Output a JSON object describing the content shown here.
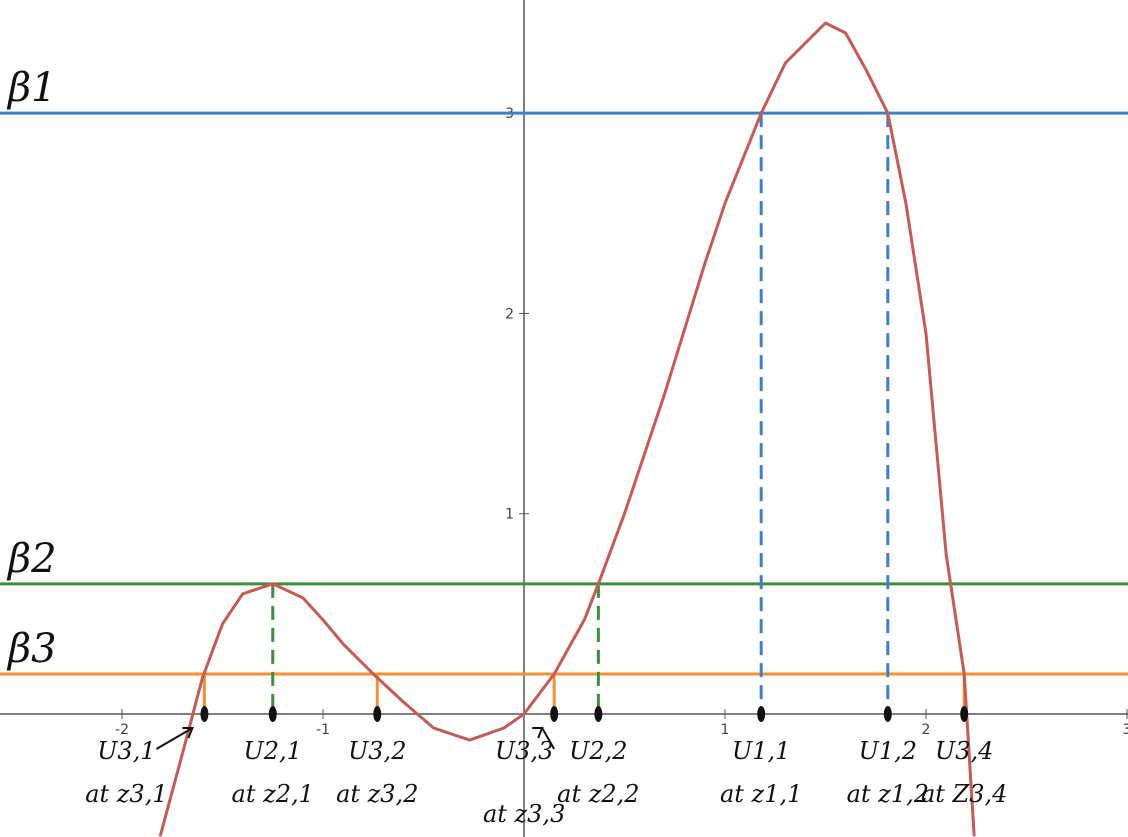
{
  "chart_data": {
    "type": "line",
    "xlim": [
      -2.607,
      3.005
    ],
    "ylim": [
      -0.614,
      3.565
    ],
    "xticks": [
      -2,
      -1,
      1,
      2,
      3
    ],
    "yticks": [
      1,
      2,
      3
    ],
    "series": [
      {
        "color": "#c65a55",
        "x": [
          -1.81,
          -1.7,
          -1.6,
          -1.5,
          -1.4,
          -1.25,
          -1.1,
          -1.0,
          -0.9,
          -0.75,
          -0.6,
          -0.45,
          -0.27,
          -0.1,
          0,
          0.15,
          0.3,
          0.37,
          0.5,
          0.7,
          0.9,
          1.0,
          1.18,
          1.3,
          1.5,
          1.6,
          1.7,
          1.81,
          1.9,
          2.0,
          2.1,
          2.19,
          2.24
        ],
        "values": [
          -0.61,
          -0.2,
          0.18,
          0.45,
          0.6,
          0.65,
          0.58,
          0.47,
          0.35,
          0.2,
          0.06,
          -0.07,
          -0.13,
          -0.07,
          0.0,
          0.2,
          0.47,
          0.65,
          1.0,
          1.6,
          2.25,
          2.55,
          3.0,
          3.25,
          3.45,
          3.4,
          3.22,
          3.0,
          2.55,
          1.9,
          0.8,
          0.2,
          -0.61
        ]
      }
    ],
    "hlines": [
      {
        "name": "β1",
        "value": 3,
        "color": "#3f7fc6"
      },
      {
        "name": "β2",
        "value": 0.65,
        "color": "#3e8e3e"
      },
      {
        "name": "β3",
        "value": 0.2,
        "color": "#f39230"
      }
    ],
    "vlines": [
      {
        "x": -1.59,
        "y": 0.2,
        "color": "#f39230",
        "dashed": false
      },
      {
        "x": -1.25,
        "y": 0.65,
        "color": "#3e8e3e",
        "dashed": true
      },
      {
        "x": -0.73,
        "y": 0.2,
        "color": "#f39230",
        "dashed": false
      },
      {
        "x": 0.15,
        "y": 0.2,
        "color": "#f39230",
        "dashed": false
      },
      {
        "x": 0.37,
        "y": 0.65,
        "color": "#3e8e3e",
        "dashed": true
      },
      {
        "x": 1.18,
        "y": 3,
        "color": "#3f7fc6",
        "dashed": true
      },
      {
        "x": 1.81,
        "y": 3,
        "color": "#3f7fc6",
        "dashed": true
      },
      {
        "x": 2.19,
        "y": 0.2,
        "color": "#f39230",
        "dashed": false
      }
    ],
    "annotations": [
      {
        "x": -1.59,
        "label": "U3,1",
        "sublabel": "at z3,1"
      },
      {
        "x": -1.25,
        "label": "U2,1",
        "sublabel": "at z2,1"
      },
      {
        "x": -0.73,
        "label": "U3,2",
        "sublabel": "at z3,2"
      },
      {
        "x": 0.15,
        "label": "U3,3",
        "sublabel": "at z3,3"
      },
      {
        "x": 0.37,
        "label": "U2,2",
        "sublabel": "at z2,2"
      },
      {
        "x": 1.18,
        "label": "U1,1",
        "sublabel": "at z1,1"
      },
      {
        "x": 1.81,
        "label": "U1,2",
        "sublabel": "at z1,2"
      },
      {
        "x": 2.19,
        "label": "U3,4",
        "sublabel": "at Z3,4"
      }
    ]
  }
}
